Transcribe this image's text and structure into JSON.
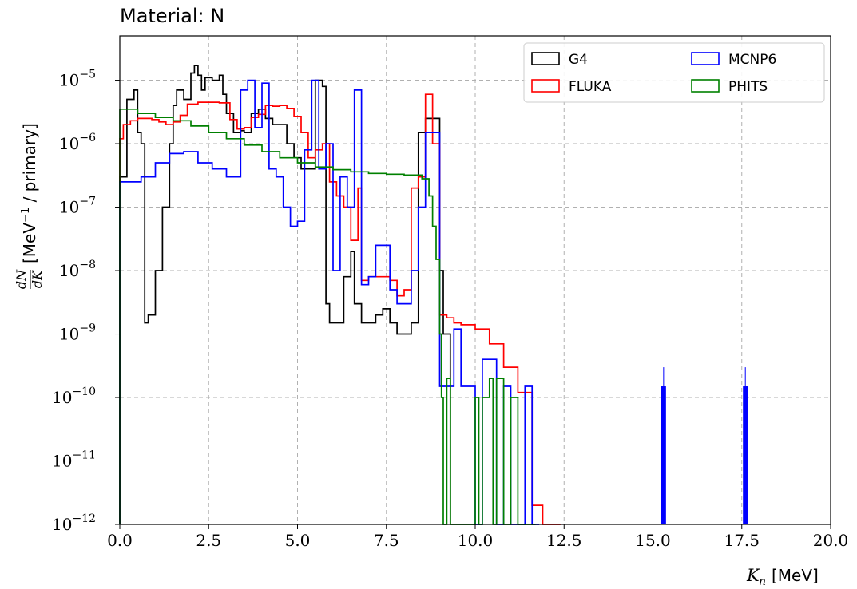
{
  "chart_data": {
    "type": "line",
    "title": "Material:  N",
    "xlabel": "K_n [MeV]",
    "ylabel": "dN/dK [MeV^-1 / primary]",
    "xlim": [
      0.0,
      20.0
    ],
    "ylim": [
      1e-12,
      5e-05
    ],
    "yscale": "log",
    "grid": true,
    "legend_position": "top-right",
    "x_tick_labels": [
      "0.0",
      "2.5",
      "5.0",
      "7.5",
      "10.0",
      "12.5",
      "15.0",
      "17.5",
      "20.0"
    ],
    "y_tick_exponents": [
      "-12",
      "-11",
      "-10",
      "-9",
      "-8",
      "-7",
      "-6",
      "-5"
    ],
    "series": [
      {
        "name": "G4",
        "color": "#000000",
        "x": [
          0.0,
          0.2,
          0.4,
          0.5,
          0.6,
          0.7,
          0.8,
          1.0,
          1.2,
          1.4,
          1.5,
          1.6,
          1.8,
          2.0,
          2.1,
          2.2,
          2.3,
          2.4,
          2.6,
          2.8,
          2.9,
          3.0,
          3.2,
          3.4,
          3.5,
          3.7,
          3.9,
          4.1,
          4.3,
          4.5,
          4.7,
          4.9,
          5.1,
          5.3,
          5.5,
          5.7,
          5.8,
          5.9,
          6.1,
          6.3,
          6.5,
          6.6,
          6.8,
          7.0,
          7.2,
          7.4,
          7.6,
          7.8,
          8.0,
          8.2,
          8.4,
          8.6,
          8.8,
          9.0,
          9.1
        ],
        "y": [
          3e-07,
          5e-06,
          7e-06,
          1.5e-06,
          1e-06,
          1.5e-09,
          2e-09,
          1e-08,
          1e-07,
          1e-06,
          4e-06,
          7e-06,
          5e-06,
          1.3e-05,
          1.7e-05,
          1.2e-05,
          7e-06,
          1.1e-05,
          1e-05,
          1.2e-05,
          6e-06,
          3e-06,
          1.5e-06,
          1.6e-06,
          1.5e-06,
          3e-06,
          3.5e-06,
          2.5e-06,
          2e-06,
          2e-06,
          1e-06,
          6e-07,
          4e-07,
          4e-07,
          1e-05,
          8e-06,
          3e-09,
          1.5e-09,
          1.5e-09,
          8e-09,
          2e-08,
          3e-09,
          1.5e-09,
          1.5e-09,
          2e-09,
          2.5e-09,
          1.5e-09,
          1e-09,
          1e-09,
          1.5e-09,
          1.5e-06,
          2.5e-06,
          2.5e-06,
          1e-08,
          1e-09
        ]
      },
      {
        "name": "FLUKA",
        "color": "#ff0000",
        "x": [
          0.0,
          0.1,
          0.3,
          0.5,
          0.7,
          0.9,
          1.1,
          1.3,
          1.5,
          1.7,
          1.9,
          2.2,
          2.5,
          2.8,
          3.1,
          3.3,
          3.5,
          3.7,
          3.9,
          4.1,
          4.3,
          4.5,
          4.7,
          4.9,
          5.1,
          5.3,
          5.5,
          5.7,
          5.9,
          6.1,
          6.3,
          6.5,
          6.7,
          6.8,
          7.0,
          7.2,
          7.4,
          7.6,
          7.8,
          8.0,
          8.2,
          8.4,
          8.6,
          8.8,
          9.0,
          9.2,
          9.4,
          9.6,
          10.0,
          10.4,
          10.8,
          11.2,
          11.6,
          11.9,
          12.2
        ],
        "y": [
          1.2e-06,
          2e-06,
          2.3e-06,
          2.5e-06,
          2.5e-06,
          2.4e-06,
          2.2e-06,
          2e-06,
          2.2e-06,
          2.8e-06,
          4.2e-06,
          4.5e-06,
          4.5e-06,
          4.4e-06,
          2.4e-06,
          1.7e-06,
          1.8e-06,
          2.6e-06,
          2.9e-06,
          4e-06,
          3.9e-06,
          4e-06,
          3.6e-06,
          2.7e-06,
          1.5e-06,
          6e-07,
          8e-07,
          1e-06,
          2.5e-07,
          1.5e-07,
          1e-07,
          3e-08,
          2e-07,
          7e-09,
          8e-09,
          8e-09,
          8e-09,
          7e-09,
          4e-09,
          5e-09,
          2e-07,
          3e-07,
          6e-06,
          1e-06,
          2e-09,
          1.8e-09,
          1.5e-09,
          1.4e-09,
          1.2e-09,
          7e-10,
          3e-10,
          1.2e-10,
          2e-12,
          1e-12,
          1e-12
        ]
      },
      {
        "name": "MCNP6",
        "color": "#0000ff",
        "x": [
          0.0,
          0.6,
          1.0,
          1.4,
          1.8,
          2.2,
          2.6,
          3.0,
          3.4,
          3.6,
          3.8,
          4.0,
          4.2,
          4.4,
          4.6,
          4.8,
          5.0,
          5.2,
          5.4,
          5.5,
          5.6,
          5.8,
          6.0,
          6.2,
          6.4,
          6.6,
          6.8,
          7.0,
          7.2,
          7.4,
          7.6,
          7.8,
          8.0,
          8.2,
          8.4,
          8.6,
          8.8,
          9.0,
          9.2,
          9.4,
          9.6,
          9.8,
          10.0,
          10.2,
          10.4,
          10.6,
          10.8,
          11.0,
          11.2,
          11.4,
          11.6
        ],
        "y": [
          2.5e-07,
          3e-07,
          5e-07,
          7e-07,
          7.5e-07,
          5e-07,
          4e-07,
          3e-07,
          7e-06,
          1e-05,
          1.8e-06,
          9e-06,
          4e-07,
          3e-07,
          1e-07,
          5e-08,
          6e-08,
          8e-07,
          1e-05,
          1e-05,
          4e-07,
          1e-06,
          1e-08,
          3e-07,
          1e-07,
          7e-06,
          6e-09,
          8e-09,
          2.5e-08,
          2.5e-08,
          5e-09,
          3e-09,
          3e-09,
          1e-08,
          1e-07,
          1.5e-06,
          1.5e-06,
          1.5e-10,
          1.5e-10,
          1.2e-09,
          1.5e-10,
          1.5e-10,
          1e-12,
          4e-10,
          4e-10,
          1e-12,
          1.5e-10,
          1e-12,
          1e-12,
          1.5e-10,
          1e-12
        ]
      },
      {
        "name": "PHITS",
        "color": "#008000",
        "x": [
          0.0,
          0.5,
          1.0,
          1.5,
          2.0,
          2.5,
          3.0,
          3.5,
          4.0,
          4.5,
          5.0,
          5.5,
          6.0,
          6.5,
          7.0,
          7.5,
          8.0,
          8.5,
          8.7,
          8.8,
          8.9,
          9.0,
          9.05,
          9.1,
          9.2,
          9.3,
          9.4,
          9.5,
          9.6,
          9.8,
          10.0,
          10.1,
          10.2,
          10.4,
          10.5,
          10.6,
          10.8,
          11.0,
          11.2,
          11.4,
          11.5
        ],
        "y": [
          3.5e-06,
          3e-06,
          2.6e-06,
          2.3e-06,
          1.9e-06,
          1.5e-06,
          1.2e-06,
          9.5e-07,
          7.5e-07,
          6e-07,
          5e-07,
          4.3e-07,
          3.9e-07,
          3.6e-07,
          3.4e-07,
          3.3e-07,
          3.2e-07,
          2.8e-07,
          1.5e-07,
          5e-08,
          1.5e-08,
          1e-09,
          1e-10,
          1e-12,
          2e-10,
          1e-12,
          1e-12,
          1e-12,
          1e-12,
          1e-12,
          1e-10,
          1e-12,
          1e-10,
          2e-10,
          1e-12,
          2e-10,
          1e-12,
          1e-10,
          1e-12,
          1e-12,
          1e-12
        ]
      }
    ],
    "annotations": [
      {
        "series": "MCNP6",
        "x": 15.3,
        "y": 1.5e-10
      },
      {
        "series": "MCNP6",
        "x": 17.6,
        "y": 1.5e-10
      }
    ]
  }
}
